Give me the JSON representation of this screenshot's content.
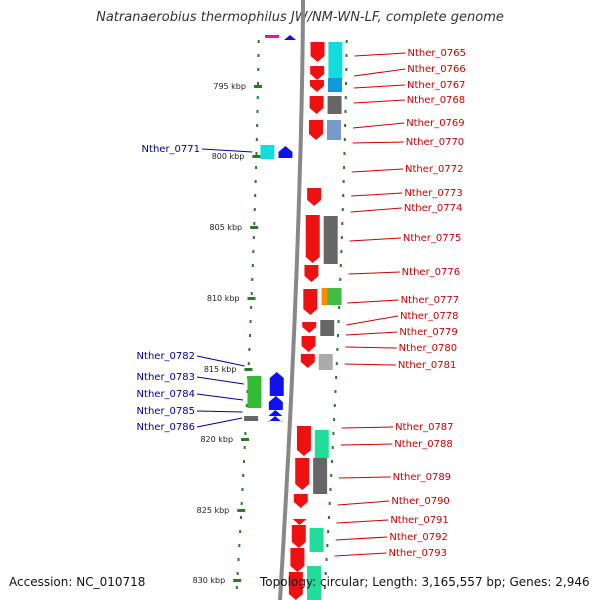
{
  "title": "Natranaerobius thermophilus JW/NM-WN-LF, complete genome",
  "footer": {
    "accession": "Accession: NC_010718",
    "topology": "Topology: circular; Length: 3,165,557 bp; Genes: 2,946"
  },
  "colors": {
    "forward_label": "#cc0000",
    "reverse_label": "#000099",
    "gene_red": "#ee1111",
    "gene_blue": "#1111ee",
    "backbone": "#888888",
    "tick": "#2a7a2a"
  },
  "kbp_ticks": [
    "795 kbp",
    "800 kbp",
    "805 kbp",
    "810 kbp",
    "815 kbp",
    "820 kbp",
    "825 kbp",
    "830 kbp"
  ],
  "forward_genes": [
    "Nther_0765",
    "Nther_0766",
    "Nther_0767",
    "Nther_0768",
    "Nther_0769",
    "Nther_0770",
    "Nther_0772",
    "Nther_0773",
    "Nther_0774",
    "Nther_0775",
    "Nther_0776",
    "Nther_0777",
    "Nther_0778",
    "Nther_0779",
    "Nther_0780",
    "Nther_0781",
    "Nther_0787",
    "Nther_0788",
    "Nther_0789",
    "Nther_0790",
    "Nther_0791",
    "Nther_0792",
    "Nther_0793"
  ],
  "reverse_genes": [
    "Nther_0771",
    "Nther_0782",
    "Nther_0783",
    "Nther_0784",
    "Nther_0785",
    "Nther_0786"
  ]
}
